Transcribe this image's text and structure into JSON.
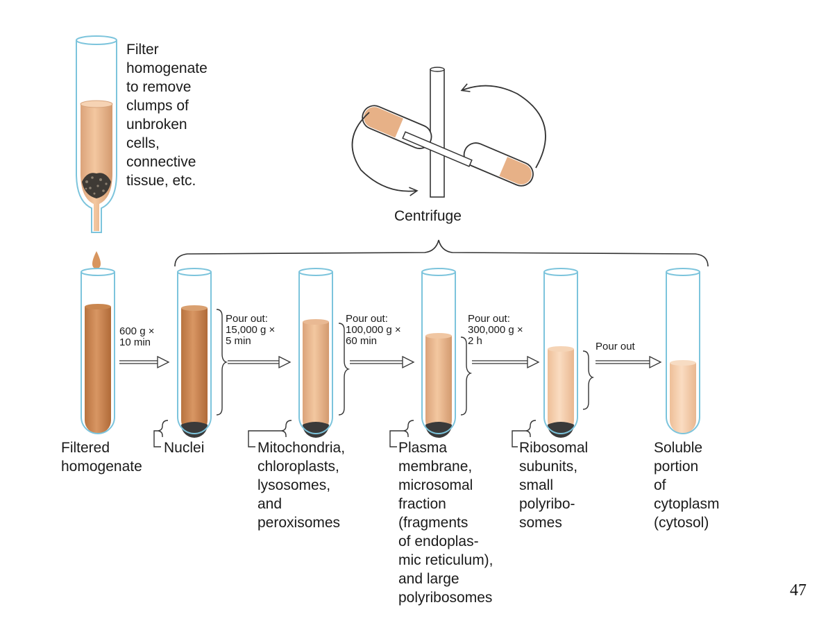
{
  "filter_label": "Filter\nhomogenate\nto remove\nclumps of\nunbroken\ncells,\nconnective\ntissue, etc.",
  "centrifuge_label": "Centrifuge",
  "steps": [
    {
      "label": "600 g ×\n10 min"
    },
    {
      "label": "Pour out:\n15,000 g ×\n5 min"
    },
    {
      "label": "Pour out:\n100,000 g ×\n60 min"
    },
    {
      "label": "Pour out:\n300,000 g ×\n2 h"
    },
    {
      "label": "Pour out"
    }
  ],
  "tubes": [
    {
      "label": "Filtered\nhomogenate"
    },
    {
      "label": "Nuclei"
    },
    {
      "label": "Mitochondria,\nchloroplasts,\nlysosomes,\nand\nperoxisomes"
    },
    {
      "label": "Plasma\nmembrane,\nmicrosomal\nfraction\n(fragments\nof endoplas-\nmic reticulum),\nand large\npolyribosomes"
    },
    {
      "label": "Ribosomal\nsubunits,\nsmall\npolyribo-\nsomes"
    },
    {
      "label": "Soluble\nportion\nof\ncytoplasm\n(cytosol)"
    }
  ],
  "page_number": "47",
  "colors": {
    "glass": "#7cc4dc",
    "liquid_dark": "#c98a55",
    "liquid_light": "#f3c9a3",
    "pellet": "#3a3a3a"
  }
}
